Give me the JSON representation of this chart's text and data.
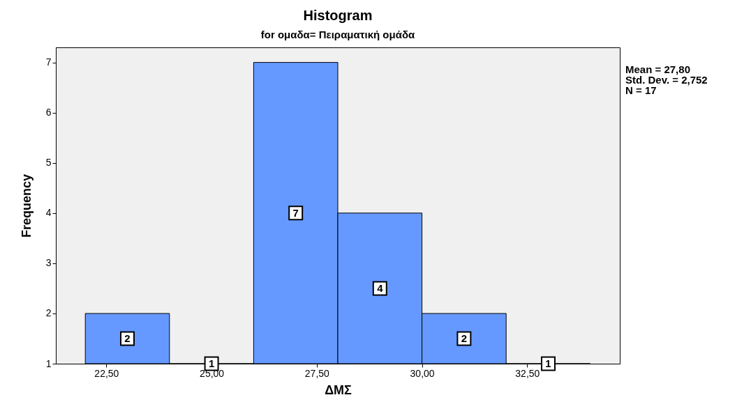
{
  "chart_data": {
    "type": "histogram",
    "title": "Histogram",
    "subtitle": "for ομαδα= Πειραματική ομάδα",
    "xlabel": "ΔΜΣ",
    "ylabel": "Frequency",
    "bins": [
      22,
      24,
      26,
      28,
      30,
      32,
      34
    ],
    "values": [
      2,
      1,
      7,
      4,
      2,
      1
    ],
    "color": "#6699ff",
    "xlim": [
      21.3,
      34.7
    ],
    "ylim": [
      1,
      7.3
    ],
    "xticks": [
      {
        "value": 22.5,
        "label": "22,50"
      },
      {
        "value": 25,
        "label": "25,00"
      },
      {
        "value": 27.5,
        "label": "27,50"
      },
      {
        "value": 30,
        "label": "30,00"
      },
      {
        "value": 32.5,
        "label": "32,50"
      }
    ],
    "yticks": [
      1,
      2,
      3,
      4,
      5,
      6,
      7
    ],
    "data_labels": true,
    "grid": false,
    "annotations": [
      "Mean = 27,80",
      "Std. Dev. = 2,752",
      "N = 17"
    ]
  }
}
